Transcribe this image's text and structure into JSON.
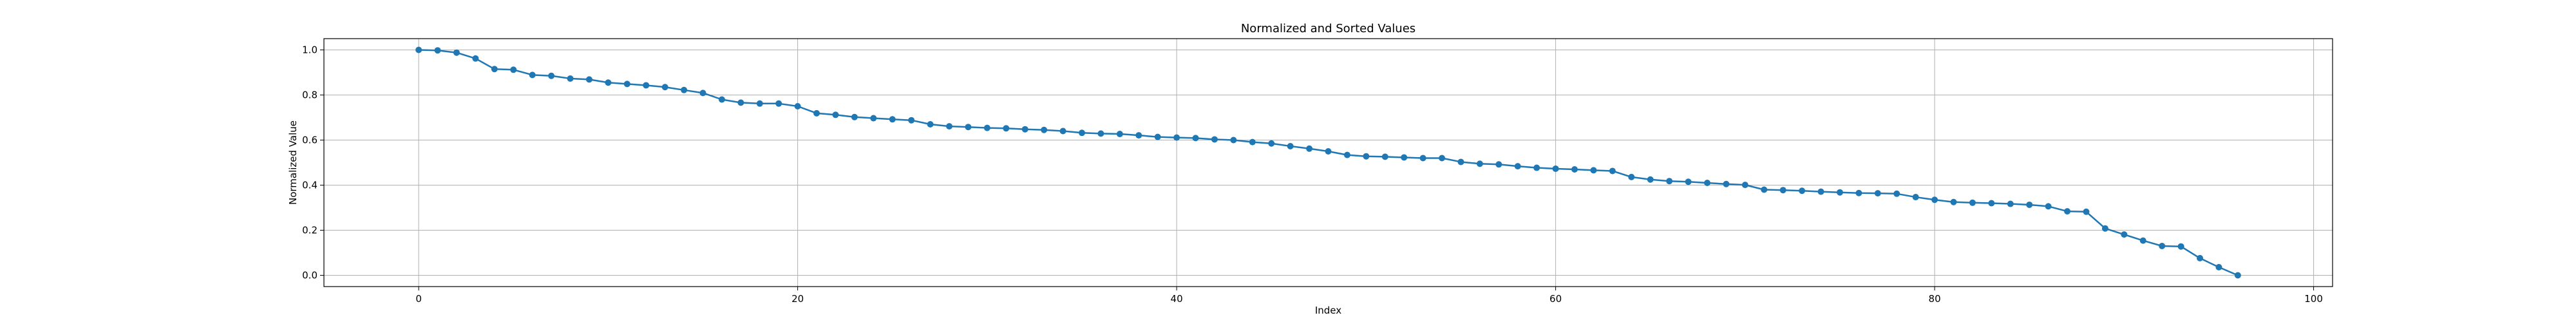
{
  "chart_data": {
    "type": "line",
    "title": "Normalized and Sorted Values",
    "xlabel": "Index",
    "ylabel": "Normalized Value",
    "xlim": [
      -5,
      101
    ],
    "ylim": [
      -0.05,
      1.05
    ],
    "xticks": [
      0,
      20,
      40,
      60,
      80,
      100
    ],
    "yticks": [
      0.0,
      0.2,
      0.4,
      0.6,
      0.8,
      1.0
    ],
    "xtick_labels": [
      "0",
      "20",
      "40",
      "60",
      "80",
      "100"
    ],
    "ytick_labels": [
      "0.0",
      "0.2",
      "0.4",
      "0.6",
      "0.8",
      "1.0"
    ],
    "grid": true,
    "series": [
      {
        "color": "#1f77b4",
        "marker": "circle",
        "x": [
          0,
          1,
          2,
          3,
          4,
          5,
          6,
          7,
          8,
          9,
          10,
          11,
          12,
          13,
          14,
          15,
          16,
          17,
          18,
          19,
          20,
          21,
          22,
          23,
          24,
          25,
          26,
          27,
          28,
          29,
          30,
          31,
          32,
          33,
          34,
          35,
          36,
          37,
          38,
          39,
          40,
          41,
          42,
          43,
          44,
          45,
          46,
          47,
          48,
          49,
          50,
          51,
          52,
          53,
          54,
          55,
          56,
          57,
          58,
          59,
          60,
          61,
          62,
          63,
          64,
          65,
          66,
          67,
          68,
          69,
          70,
          71,
          72,
          73,
          74,
          75,
          76,
          77,
          78,
          79,
          80,
          81,
          82,
          83,
          84,
          85,
          86,
          87,
          88,
          89,
          90,
          91,
          92,
          93,
          94,
          95,
          96
        ],
        "values": [
          1.0,
          0.998,
          0.988,
          0.962,
          0.915,
          0.912,
          0.889,
          0.885,
          0.873,
          0.869,
          0.855,
          0.849,
          0.843,
          0.835,
          0.822,
          0.809,
          0.78,
          0.766,
          0.762,
          0.762,
          0.75,
          0.719,
          0.712,
          0.702,
          0.697,
          0.692,
          0.688,
          0.67,
          0.661,
          0.658,
          0.654,
          0.652,
          0.648,
          0.645,
          0.64,
          0.632,
          0.629,
          0.627,
          0.621,
          0.614,
          0.611,
          0.609,
          0.603,
          0.6,
          0.591,
          0.585,
          0.573,
          0.562,
          0.55,
          0.534,
          0.528,
          0.526,
          0.523,
          0.52,
          0.52,
          0.503,
          0.495,
          0.492,
          0.484,
          0.477,
          0.473,
          0.47,
          0.466,
          0.463,
          0.436,
          0.425,
          0.418,
          0.415,
          0.41,
          0.405,
          0.401,
          0.38,
          0.378,
          0.375,
          0.371,
          0.368,
          0.365,
          0.364,
          0.362,
          0.347,
          0.335,
          0.325,
          0.322,
          0.32,
          0.317,
          0.313,
          0.306,
          0.284,
          0.282,
          0.208,
          0.181,
          0.154,
          0.13,
          0.128,
          0.076,
          0.036,
          0.0
        ]
      }
    ]
  }
}
